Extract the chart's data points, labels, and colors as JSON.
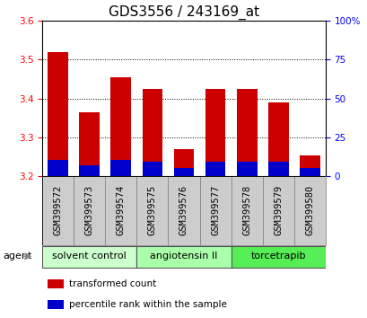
{
  "title": "GDS3556 / 243169_at",
  "samples": [
    "GSM399572",
    "GSM399573",
    "GSM399574",
    "GSM399575",
    "GSM399576",
    "GSM399577",
    "GSM399578",
    "GSM399579",
    "GSM399580"
  ],
  "red_tops": [
    3.52,
    3.365,
    3.455,
    3.425,
    3.27,
    3.425,
    3.425,
    3.39,
    3.255
  ],
  "blue_tops": [
    3.242,
    3.228,
    3.242,
    3.237,
    3.222,
    3.237,
    3.237,
    3.237,
    3.222
  ],
  "bar_base": 3.2,
  "ylim": [
    3.2,
    3.6
  ],
  "yticks_left": [
    3.2,
    3.3,
    3.4,
    3.5,
    3.6
  ],
  "yticks_right_pct": [
    0,
    25,
    50,
    75,
    100
  ],
  "red_color": "#cc0000",
  "blue_color": "#0000cc",
  "bar_width": 0.65,
  "groups": [
    {
      "label": "solvent control",
      "spans": [
        0,
        3
      ],
      "color": "#ccffcc"
    },
    {
      "label": "angiotensin II",
      "spans": [
        3,
        6
      ],
      "color": "#aaffaa"
    },
    {
      "label": "torcetrapib",
      "spans": [
        6,
        9
      ],
      "color": "#55ee55"
    }
  ],
  "agent_label": "agent",
  "legend_red": "transformed count",
  "legend_blue": "percentile rank within the sample",
  "title_fontsize": 11,
  "axis_fontsize": 8,
  "tick_fontsize": 7.5,
  "label_fontsize": 8,
  "xtick_bg_color": "#cccccc",
  "xtick_border_color": "#999999"
}
